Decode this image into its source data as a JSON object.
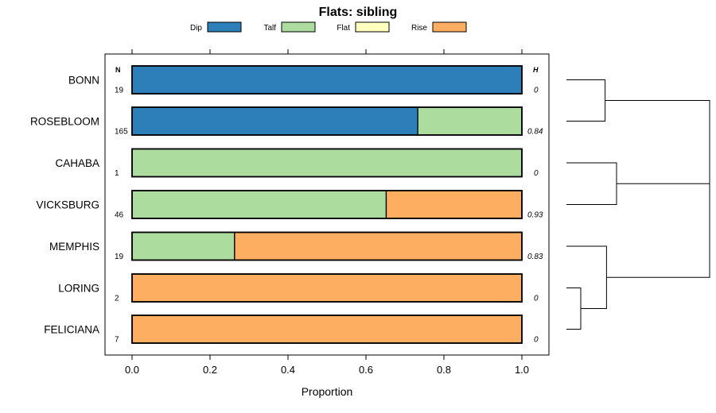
{
  "chart_data": {
    "type": "bar",
    "orientation": "horizontal",
    "stacked": true,
    "title": "Flats: sibling",
    "xlabel": "Proportion",
    "xlim": [
      -0.07,
      1.07
    ],
    "xticks": [
      0,
      0.2,
      0.4,
      0.6,
      0.8,
      1
    ],
    "xtick_labels": [
      "0.0",
      "0.2",
      "0.4",
      "0.6",
      "0.8",
      "1.0"
    ],
    "legend_position": "top",
    "grid": false,
    "n_header": "N",
    "h_header": "H",
    "legend": [
      {
        "name": "Dip",
        "color": "#2c7fb8"
      },
      {
        "name": "Talf",
        "color": "#addd9e"
      },
      {
        "name": "Flat",
        "color": "#ffffbf"
      },
      {
        "name": "Rise",
        "color": "#fdae61"
      }
    ],
    "categories": [
      "BONN",
      "ROSEBLOOM",
      "CAHABA",
      "VICKSBURG",
      "MEMPHIS",
      "LORING",
      "FELICIANA"
    ],
    "n": [
      "19",
      "165",
      "1",
      "46",
      "19",
      "2",
      "7"
    ],
    "h": [
      "0",
      "0.84",
      "0",
      "0.93",
      "0.83",
      "0",
      "0"
    ],
    "series": [
      {
        "name": "Dip",
        "values": [
          1.0,
          0.733,
          0.0,
          0.0,
          0.0,
          0.0,
          0.0
        ]
      },
      {
        "name": "Talf",
        "values": [
          0.0,
          0.267,
          1.0,
          0.652,
          0.263,
          0.0,
          0.0
        ]
      },
      {
        "name": "Flat",
        "values": [
          0.0,
          0.0,
          0.0,
          0.0,
          0.0,
          0.0,
          0.0
        ]
      },
      {
        "name": "Rise",
        "values": [
          0.0,
          0.0,
          0.0,
          0.348,
          0.737,
          1.0,
          1.0
        ]
      }
    ],
    "dendrogram": {
      "merges": [
        {
          "left": "LORING",
          "right": "FELICIANA",
          "height": 0.1
        },
        {
          "left": "BONN",
          "right": "ROSEBLOOM",
          "height": 0.27
        },
        {
          "left": "CAHABA",
          "right": "VICKSBURG",
          "height": 0.35
        },
        {
          "left": "MEMPHIS",
          "right": "LORING+FELICIANA",
          "height": 0.28
        },
        {
          "left": "CAHABA+VICKSBURG",
          "right": "MEMPHIS+LORING+FELICIANA",
          "height": 1.0
        },
        {
          "left": "BONN+ROSEBLOOM",
          "right": "CAHABA+VICKSBURG+MEMPHIS+LORING+FELICIANA",
          "height": 1.0
        }
      ]
    }
  }
}
